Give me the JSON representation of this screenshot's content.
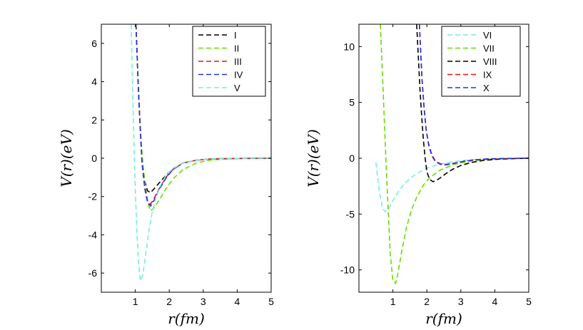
{
  "chart_data": [
    {
      "type": "line",
      "panel": "left",
      "xlabel": "r(fm)",
      "ylabel": "V(r)(eV)",
      "xlim": [
        0,
        5
      ],
      "ylim": [
        -7,
        7
      ],
      "xticks": [
        "1",
        "2",
        "3",
        "4",
        "5"
      ],
      "yticks": [
        "6",
        "4",
        "2",
        "0",
        "-2",
        "-4",
        "-6"
      ],
      "legend_position": "top-right",
      "series": [
        {
          "name": "I",
          "color": "#000000",
          "x": [
            1.02,
            1.06,
            1.1,
            1.15,
            1.2,
            1.28,
            1.36,
            1.45,
            1.55,
            1.7,
            1.9,
            2.1,
            2.4,
            2.8,
            3.2,
            3.6,
            4.0,
            4.5,
            5.0
          ],
          "y": [
            7.0,
            5.0,
            3.3,
            1.5,
            -0.2,
            -1.2,
            -1.7,
            -1.8,
            -1.6,
            -1.3,
            -0.9,
            -0.55,
            -0.25,
            -0.1,
            -0.04,
            -0.02,
            -0.01,
            0.0,
            0.0
          ]
        },
        {
          "name": "II",
          "color": "#66dd00",
          "x": [
            1.02,
            1.06,
            1.1,
            1.15,
            1.2,
            1.28,
            1.36,
            1.45,
            1.55,
            1.7,
            1.9,
            2.1,
            2.4,
            2.8,
            3.2,
            3.6,
            4.0,
            4.5,
            5.0
          ],
          "y": [
            7.0,
            5.0,
            3.3,
            1.6,
            0.2,
            -1.2,
            -2.3,
            -2.75,
            -2.6,
            -2.2,
            -1.6,
            -1.1,
            -0.6,
            -0.25,
            -0.1,
            -0.05,
            -0.02,
            -0.01,
            0.0
          ]
        },
        {
          "name": "III",
          "color": "#ee1111",
          "x": [
            1.02,
            1.06,
            1.1,
            1.15,
            1.2,
            1.28,
            1.36,
            1.45,
            1.55,
            1.7,
            1.9,
            2.1,
            2.4,
            2.8,
            3.2,
            3.6,
            4.0,
            4.5,
            5.0
          ],
          "y": [
            7.0,
            5.0,
            3.2,
            1.4,
            -0.3,
            -1.5,
            -2.2,
            -2.4,
            -2.1,
            -1.6,
            -1.0,
            -0.6,
            -0.25,
            -0.1,
            -0.04,
            -0.02,
            -0.01,
            0.0,
            0.0
          ]
        },
        {
          "name": "IV",
          "color": "#2233ee",
          "x": [
            1.02,
            1.06,
            1.1,
            1.15,
            1.2,
            1.28,
            1.36,
            1.45,
            1.55,
            1.7,
            1.9,
            2.1,
            2.4,
            2.8,
            3.2,
            3.6,
            4.0,
            4.5,
            5.0
          ],
          "y": [
            7.0,
            5.0,
            3.2,
            1.4,
            -0.3,
            -1.6,
            -2.3,
            -2.5,
            -2.2,
            -1.65,
            -1.05,
            -0.6,
            -0.25,
            -0.1,
            -0.04,
            -0.02,
            -0.01,
            0.0,
            0.0
          ]
        },
        {
          "name": "V",
          "color": "#77eedd",
          "x": [
            0.88,
            0.91,
            0.95,
            1.0,
            1.05,
            1.1,
            1.15,
            1.22,
            1.3,
            1.4,
            1.5,
            1.6,
            1.75,
            1.9,
            2.1,
            2.4,
            2.8,
            3.2,
            3.6,
            4.0,
            4.5,
            5.0
          ],
          "y": [
            7.0,
            4.5,
            1.5,
            -1.6,
            -4.0,
            -5.6,
            -6.4,
            -6.1,
            -5.1,
            -3.8,
            -2.8,
            -2.1,
            -1.4,
            -0.9,
            -0.55,
            -0.25,
            -0.1,
            -0.04,
            -0.02,
            -0.01,
            0.0,
            0.0
          ]
        }
      ]
    },
    {
      "type": "line",
      "panel": "right",
      "xlabel": "r(fm)",
      "ylabel": "V(r)(eV)",
      "xlim": [
        0,
        5
      ],
      "ylim": [
        -12,
        12
      ],
      "xticks": [
        "1",
        "2",
        "3",
        "4",
        "5"
      ],
      "yticks": [
        "10",
        "5",
        "0",
        "-5",
        "-10"
      ],
      "legend_position": "top-right",
      "series": [
        {
          "name": "VI",
          "color": "#77eedd",
          "x": [
            0.5,
            0.6,
            0.7,
            0.78,
            0.9,
            1.0,
            1.2,
            1.4,
            1.6,
            1.8,
            2.0,
            2.3,
            2.6,
            3.0,
            3.5,
            4.0,
            4.5,
            5.0
          ],
          "y": [
            -0.4,
            -3.0,
            -4.5,
            -4.8,
            -4.4,
            -3.8,
            -2.8,
            -2.1,
            -1.6,
            -1.2,
            -0.9,
            -0.6,
            -0.4,
            -0.22,
            -0.1,
            -0.05,
            -0.02,
            0.0
          ]
        },
        {
          "name": "VII",
          "color": "#66dd00",
          "x": [
            0.63,
            0.7,
            0.78,
            0.85,
            0.92,
            1.0,
            1.08,
            1.15,
            1.25,
            1.4,
            1.55,
            1.7,
            1.9,
            2.1,
            2.4,
            2.8,
            3.2,
            3.6,
            4.0,
            4.5,
            5.0
          ],
          "y": [
            12.0,
            7.0,
            1.0,
            -4.0,
            -8.5,
            -11.0,
            -11.2,
            -10.3,
            -8.5,
            -6.2,
            -4.6,
            -3.5,
            -2.4,
            -1.7,
            -1.05,
            -0.55,
            -0.3,
            -0.15,
            -0.08,
            -0.03,
            0.0
          ]
        },
        {
          "name": "VIII",
          "color": "#000000",
          "x": [
            1.7,
            1.75,
            1.8,
            1.85,
            1.9,
            1.95,
            2.0,
            2.08,
            2.18,
            2.3,
            2.4,
            2.55,
            2.75,
            3.0,
            3.3,
            3.7,
            4.2,
            4.7,
            5.0
          ],
          "y": [
            12.0,
            9.0,
            6.0,
            3.6,
            1.6,
            0.0,
            -1.2,
            -1.9,
            -2.1,
            -1.95,
            -1.75,
            -1.4,
            -1.0,
            -0.65,
            -0.38,
            -0.18,
            -0.07,
            -0.02,
            0.0
          ]
        },
        {
          "name": "IX",
          "color": "#ee1111",
          "x": [
            1.78,
            1.82,
            1.86,
            1.92,
            1.98,
            2.05,
            2.15,
            2.25,
            2.4,
            2.55,
            2.7,
            2.9,
            3.1,
            3.4,
            3.8,
            4.3,
            5.0
          ],
          "y": [
            12.0,
            9.5,
            7.0,
            4.5,
            2.6,
            1.3,
            0.3,
            -0.25,
            -0.5,
            -0.55,
            -0.5,
            -0.38,
            -0.26,
            -0.14,
            -0.06,
            -0.02,
            0.0
          ]
        },
        {
          "name": "X",
          "color": "#2233ee",
          "x": [
            1.78,
            1.82,
            1.86,
            1.92,
            1.98,
            2.05,
            2.15,
            2.25,
            2.4,
            2.55,
            2.7,
            2.9,
            3.1,
            3.4,
            3.8,
            4.3,
            5.0
          ],
          "y": [
            12.0,
            9.4,
            6.9,
            4.4,
            2.5,
            1.2,
            0.2,
            -0.3,
            -0.55,
            -0.6,
            -0.52,
            -0.4,
            -0.27,
            -0.15,
            -0.06,
            -0.02,
            0.0
          ]
        }
      ]
    }
  ]
}
